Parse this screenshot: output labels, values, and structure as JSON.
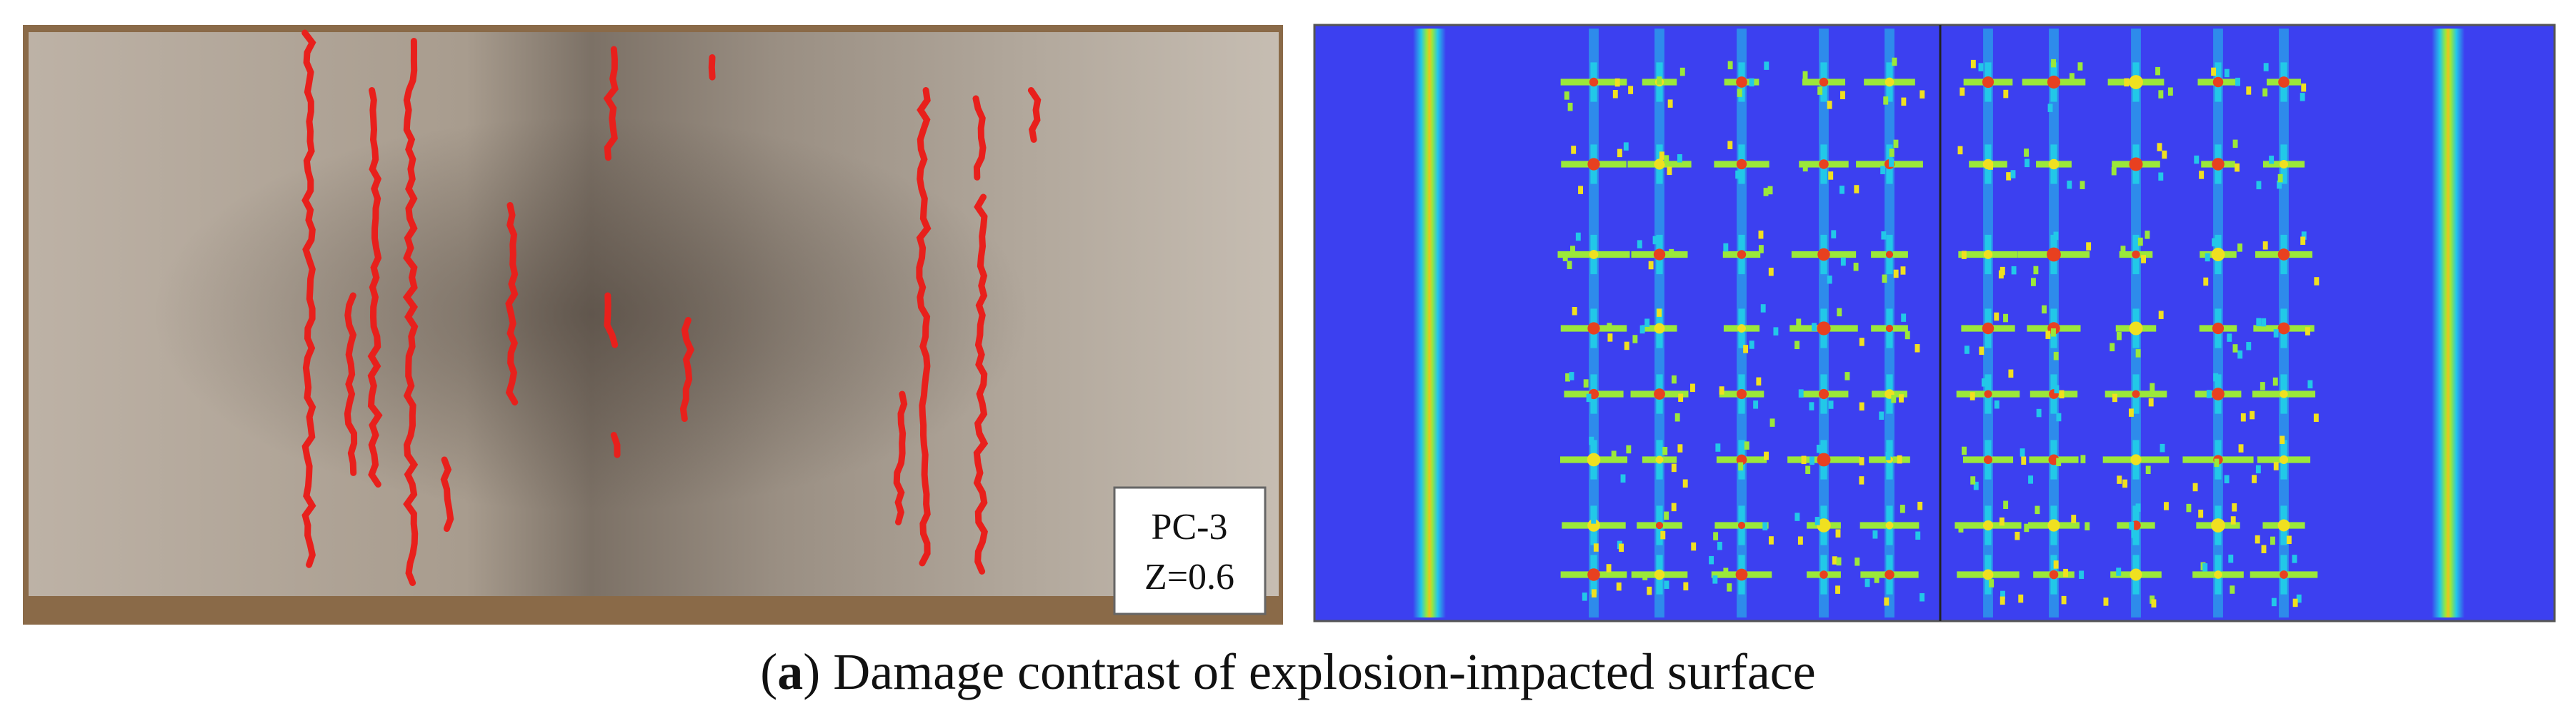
{
  "photo": {
    "specimen": "PC-3",
    "scaled_distance": "Z=0.6"
  },
  "caption": {
    "label_open": "(",
    "label": "a",
    "label_close": ")",
    "text": "Damage contrast of explosion-impacted surface"
  }
}
